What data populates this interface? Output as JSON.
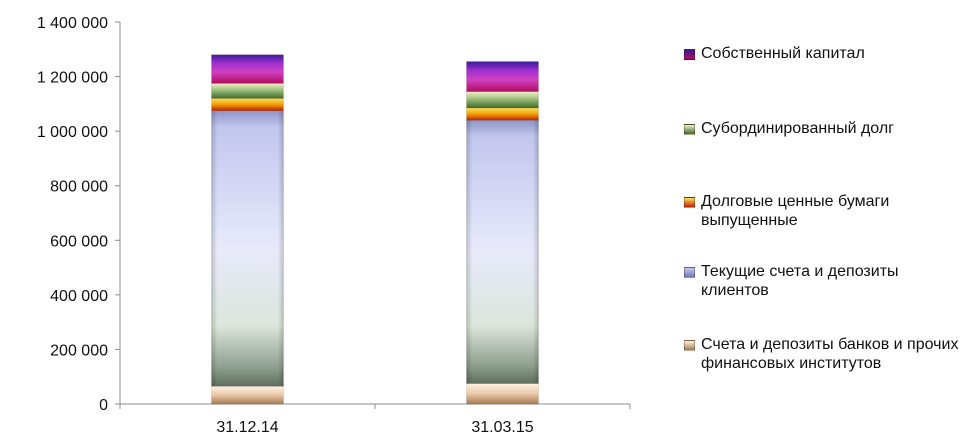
{
  "chart_data": {
    "type": "bar",
    "stacked": true,
    "categories": [
      "31.12.14",
      "31.03.15"
    ],
    "series": [
      {
        "name": "Счета и депозиты банков и прочих финансовых институтов",
        "values": [
          65000,
          75000
        ],
        "color": "#C8A07A"
      },
      {
        "name": "Текущие счета и депозиты клиентов",
        "values": [
          1010000,
          965000
        ],
        "color": "#A6ACD6"
      },
      {
        "name": "Долговые ценные бумаги выпущенные",
        "values": [
          45000,
          45000
        ],
        "color": "#E8A000"
      },
      {
        "name": "Субординированный долг",
        "values": [
          55000,
          60000
        ],
        "color": "#6E9A50"
      },
      {
        "name": "Собственный капитал",
        "values": [
          105000,
          110000
        ],
        "color": "#8A1ABF"
      }
    ],
    "yticks": [
      "0",
      "200 000",
      "400 000",
      "600 000",
      "800 000",
      "1 000 000",
      "1 200 000",
      "1 400 000"
    ],
    "ylim": [
      0,
      1400000
    ],
    "legend_position": "right",
    "grid": false
  }
}
